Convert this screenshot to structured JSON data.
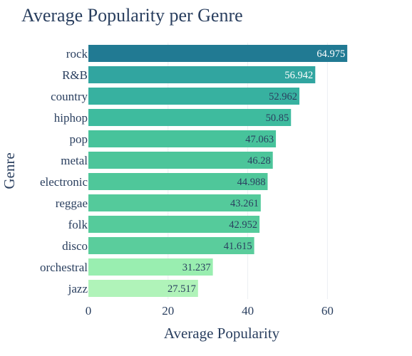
{
  "chart_data": {
    "type": "bar",
    "orientation": "horizontal",
    "title": "Average Popularity per Genre",
    "xlabel": "Average Popularity",
    "ylabel": "Genre",
    "categories": [
      "rock",
      "R&B",
      "country",
      "hiphop",
      "pop",
      "metal",
      "electronic",
      "reggae",
      "folk",
      "disco",
      "orchestral",
      "jazz"
    ],
    "values": [
      64.975,
      56.942,
      52.962,
      50.85,
      47.063,
      46.28,
      44.988,
      43.261,
      42.952,
      41.615,
      31.237,
      27.517
    ],
    "data_labels": [
      "64.975",
      "56.942",
      "52.962",
      "50.85",
      "47.063",
      "46.28",
      "44.988",
      "43.261",
      "42.952",
      "41.615",
      "31.237",
      "27.517"
    ],
    "xlim": [
      0,
      78
    ],
    "xticks": [
      0,
      20,
      40,
      60
    ],
    "xtick_labels": [
      "0",
      "20",
      "40",
      "60"
    ],
    "grid": true,
    "colorscale": "Emrld",
    "colors": [
      "#217a93",
      "#31a5a0",
      "#37b1a0",
      "#3ebb9e",
      "#47c39b",
      "#4cc59a",
      "#4fc79a",
      "#54ca9b",
      "#55cb9b",
      "#5acd9c",
      "#99eeb0",
      "#b0f3b9"
    ],
    "label_colors": [
      "#ffffff",
      "#ffffff",
      "#2a3f5f",
      "#2a3f5f",
      "#2a3f5f",
      "#2a3f5f",
      "#2a3f5f",
      "#2a3f5f",
      "#2a3f5f",
      "#2a3f5f",
      "#2a3f5f",
      "#2a3f5f"
    ]
  }
}
